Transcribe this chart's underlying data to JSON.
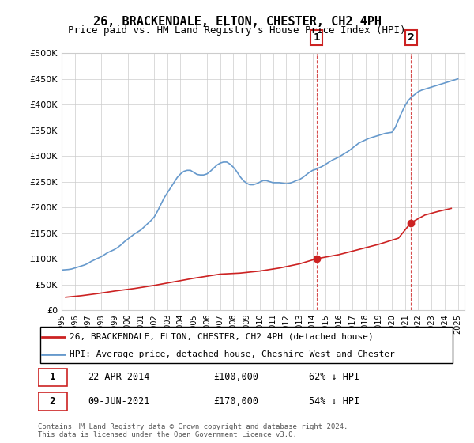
{
  "title": "26, BRACKENDALE, ELTON, CHESTER, CH2 4PH",
  "subtitle": "Price paid vs. HM Land Registry's House Price Index (HPI)",
  "ylabel_ticks": [
    "£0",
    "£50K",
    "£100K",
    "£150K",
    "£200K",
    "£250K",
    "£300K",
    "£350K",
    "£400K",
    "£450K",
    "£500K"
  ],
  "ylim": [
    0,
    500000
  ],
  "xlim_start": 1995.0,
  "xlim_end": 2025.5,
  "sale1_x": 2014.31,
  "sale1_y": 100000,
  "sale1_label": "1",
  "sale1_date": "22-APR-2014",
  "sale1_price": "£100,000",
  "sale1_pct": "62% ↓ HPI",
  "sale2_x": 2021.44,
  "sale2_y": 170000,
  "sale2_label": "2",
  "sale2_date": "09-JUN-2021",
  "sale2_price": "£170,000",
  "sale2_pct": "54% ↓ HPI",
  "hpi_line_color": "#6699cc",
  "price_line_color": "#cc2222",
  "sale_dot_color": "#cc2222",
  "vline_color": "#cc2222",
  "grid_color": "#cccccc",
  "background_color": "#ffffff",
  "legend_label_red": "26, BRACKENDALE, ELTON, CHESTER, CH2 4PH (detached house)",
  "legend_label_blue": "HPI: Average price, detached house, Cheshire West and Chester",
  "footer": "Contains HM Land Registry data © Crown copyright and database right 2024.\nThis data is licensed under the Open Government Licence v3.0.",
  "hpi_years": [
    1995.0,
    1995.25,
    1995.5,
    1995.75,
    1996.0,
    1996.25,
    1996.5,
    1996.75,
    1997.0,
    1997.25,
    1997.5,
    1997.75,
    1998.0,
    1998.25,
    1998.5,
    1998.75,
    1999.0,
    1999.25,
    1999.5,
    1999.75,
    2000.0,
    2000.25,
    2000.5,
    2000.75,
    2001.0,
    2001.25,
    2001.5,
    2001.75,
    2002.0,
    2002.25,
    2002.5,
    2002.75,
    2003.0,
    2003.25,
    2003.5,
    2003.75,
    2004.0,
    2004.25,
    2004.5,
    2004.75,
    2005.0,
    2005.25,
    2005.5,
    2005.75,
    2006.0,
    2006.25,
    2006.5,
    2006.75,
    2007.0,
    2007.25,
    2007.5,
    2007.75,
    2008.0,
    2008.25,
    2008.5,
    2008.75,
    2009.0,
    2009.25,
    2009.5,
    2009.75,
    2010.0,
    2010.25,
    2010.5,
    2010.75,
    2011.0,
    2011.25,
    2011.5,
    2011.75,
    2012.0,
    2012.25,
    2012.5,
    2012.75,
    2013.0,
    2013.25,
    2013.5,
    2013.75,
    2014.0,
    2014.25,
    2014.5,
    2014.75,
    2015.0,
    2015.25,
    2015.5,
    2015.75,
    2016.0,
    2016.25,
    2016.5,
    2016.75,
    2017.0,
    2017.25,
    2017.5,
    2017.75,
    2018.0,
    2018.25,
    2018.5,
    2018.75,
    2019.0,
    2019.25,
    2019.5,
    2019.75,
    2020.0,
    2020.25,
    2020.5,
    2020.75,
    2021.0,
    2021.25,
    2021.5,
    2021.75,
    2022.0,
    2022.25,
    2022.5,
    2022.75,
    2023.0,
    2023.25,
    2023.5,
    2023.75,
    2024.0,
    2024.25,
    2024.5,
    2024.75,
    2025.0
  ],
  "hpi_values": [
    78000,
    78500,
    79000,
    80000,
    82000,
    84000,
    86000,
    88000,
    91000,
    95000,
    98000,
    101000,
    104000,
    108000,
    112000,
    115000,
    118000,
    122000,
    127000,
    133000,
    138000,
    143000,
    148000,
    152000,
    156000,
    162000,
    168000,
    174000,
    181000,
    192000,
    205000,
    218000,
    228000,
    238000,
    248000,
    258000,
    265000,
    270000,
    272000,
    272000,
    268000,
    264000,
    263000,
    263000,
    265000,
    270000,
    276000,
    282000,
    286000,
    288000,
    288000,
    284000,
    278000,
    270000,
    260000,
    252000,
    247000,
    244000,
    244000,
    246000,
    249000,
    252000,
    252000,
    250000,
    248000,
    248000,
    248000,
    247000,
    246000,
    247000,
    249000,
    252000,
    254000,
    258000,
    263000,
    268000,
    272000,
    274000,
    277000,
    280000,
    284000,
    288000,
    292000,
    295000,
    298000,
    302000,
    306000,
    310000,
    315000,
    320000,
    325000,
    328000,
    331000,
    334000,
    336000,
    338000,
    340000,
    342000,
    344000,
    345000,
    346000,
    355000,
    370000,
    385000,
    398000,
    408000,
    415000,
    420000,
    425000,
    428000,
    430000,
    432000,
    434000,
    436000,
    438000,
    440000,
    442000,
    444000,
    446000,
    448000,
    450000
  ],
  "price_years": [
    1995.3,
    1996.5,
    1997.7,
    1999.0,
    2000.5,
    2002.0,
    2003.5,
    2005.0,
    2007.0,
    2008.5,
    2010.0,
    2011.5,
    2013.0,
    2014.31,
    2016.0,
    2017.5,
    2019.0,
    2020.5,
    2021.44,
    2022.5,
    2023.5,
    2024.5
  ],
  "price_values": [
    25000,
    28000,
    32000,
    37000,
    42000,
    48000,
    55000,
    62000,
    70000,
    72000,
    76000,
    82000,
    90000,
    100000,
    108000,
    118000,
    128000,
    140000,
    170000,
    185000,
    192000,
    198000
  ]
}
